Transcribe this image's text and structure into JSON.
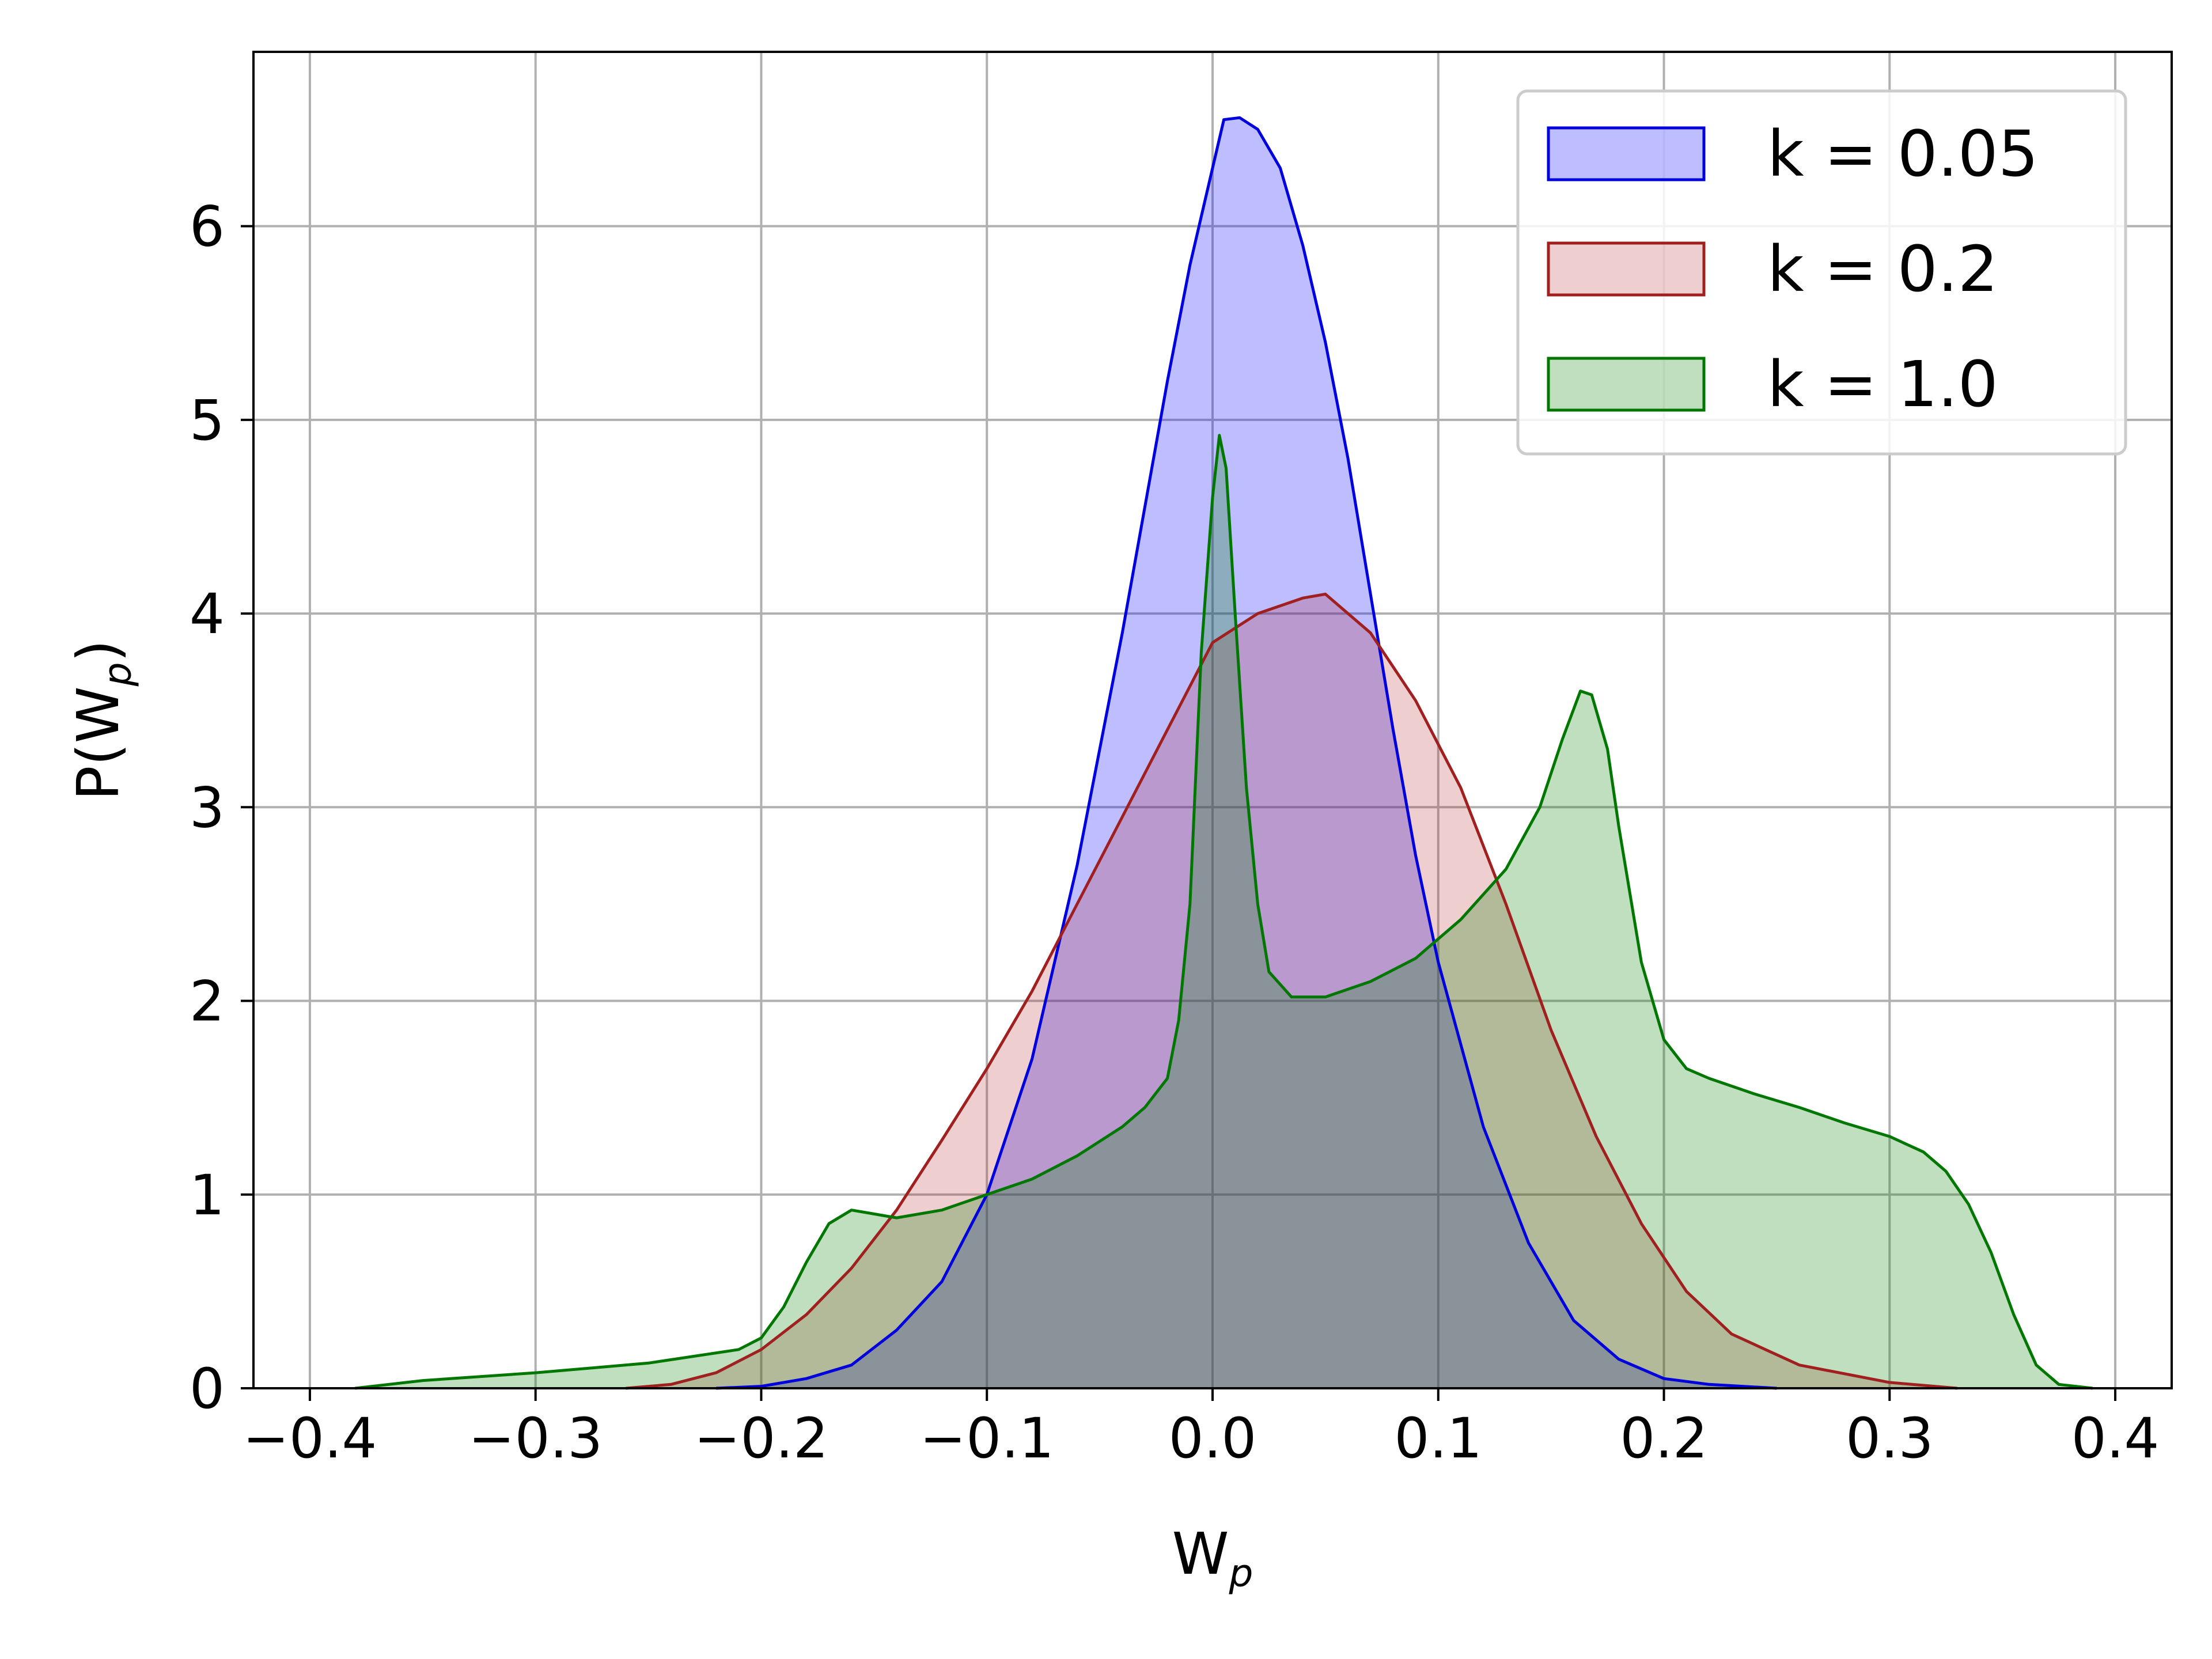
{
  "chart_data": {
    "type": "area",
    "xlabel": "W",
    "xlabel_sub": "p",
    "ylabel": "P(W",
    "ylabel_sub": "p",
    "ylabel_close": ")",
    "xlim": [
      -0.425,
      0.425
    ],
    "ylim": [
      0,
      6.9
    ],
    "grid": true,
    "legend_position": "top-right",
    "x_ticks": [
      -0.4,
      -0.3,
      -0.2,
      -0.1,
      0.0,
      0.1,
      0.2,
      0.3,
      0.4
    ],
    "x_tick_labels": [
      "−0.4",
      "−0.3",
      "−0.2",
      "−0.1",
      "0.0",
      "0.1",
      "0.2",
      "0.3",
      "0.4"
    ],
    "y_ticks": [
      0,
      1,
      2,
      3,
      4,
      5,
      6
    ],
    "y_tick_labels": [
      "0",
      "1",
      "2",
      "3",
      "4",
      "5",
      "6"
    ],
    "series": [
      {
        "name": "k = 0.05",
        "stroke": "#0000dd",
        "fill": "#0000ff",
        "fill_opacity": 0.26,
        "points": [
          [
            -0.22,
            0
          ],
          [
            -0.2,
            0.01
          ],
          [
            -0.18,
            0.05
          ],
          [
            -0.16,
            0.12
          ],
          [
            -0.14,
            0.3
          ],
          [
            -0.12,
            0.55
          ],
          [
            -0.1,
            1.0
          ],
          [
            -0.08,
            1.7
          ],
          [
            -0.06,
            2.7
          ],
          [
            -0.04,
            3.9
          ],
          [
            -0.02,
            5.2
          ],
          [
            -0.01,
            5.8
          ],
          [
            0.0,
            6.3
          ],
          [
            0.005,
            6.55
          ],
          [
            0.012,
            6.56
          ],
          [
            0.02,
            6.5
          ],
          [
            0.03,
            6.3
          ],
          [
            0.04,
            5.9
          ],
          [
            0.05,
            5.4
          ],
          [
            0.06,
            4.8
          ],
          [
            0.07,
            4.1
          ],
          [
            0.08,
            3.4
          ],
          [
            0.09,
            2.75
          ],
          [
            0.1,
            2.2
          ],
          [
            0.12,
            1.35
          ],
          [
            0.14,
            0.75
          ],
          [
            0.16,
            0.35
          ],
          [
            0.18,
            0.15
          ],
          [
            0.2,
            0.05
          ],
          [
            0.22,
            0.02
          ],
          [
            0.25,
            0
          ]
        ]
      },
      {
        "name": "k = 0.2",
        "stroke": "#a02020",
        "fill": "#b22222",
        "fill_opacity": 0.22,
        "points": [
          [
            -0.26,
            0
          ],
          [
            -0.24,
            0.02
          ],
          [
            -0.22,
            0.08
          ],
          [
            -0.2,
            0.2
          ],
          [
            -0.18,
            0.38
          ],
          [
            -0.16,
            0.62
          ],
          [
            -0.14,
            0.92
          ],
          [
            -0.12,
            1.28
          ],
          [
            -0.1,
            1.65
          ],
          [
            -0.08,
            2.05
          ],
          [
            -0.06,
            2.5
          ],
          [
            -0.04,
            2.95
          ],
          [
            -0.02,
            3.4
          ],
          [
            0.0,
            3.85
          ],
          [
            0.02,
            4.0
          ],
          [
            0.04,
            4.08
          ],
          [
            0.05,
            4.1
          ],
          [
            0.07,
            3.9
          ],
          [
            0.09,
            3.55
          ],
          [
            0.11,
            3.1
          ],
          [
            0.13,
            2.5
          ],
          [
            0.15,
            1.85
          ],
          [
            0.17,
            1.3
          ],
          [
            0.19,
            0.85
          ],
          [
            0.21,
            0.5
          ],
          [
            0.23,
            0.28
          ],
          [
            0.26,
            0.12
          ],
          [
            0.3,
            0.03
          ],
          [
            0.33,
            0
          ]
        ]
      },
      {
        "name": "k = 1.0",
        "stroke": "#007700",
        "fill": "#008000",
        "fill_opacity": 0.25,
        "points": [
          [
            -0.38,
            0
          ],
          [
            -0.35,
            0.04
          ],
          [
            -0.3,
            0.08
          ],
          [
            -0.25,
            0.13
          ],
          [
            -0.21,
            0.2
          ],
          [
            -0.2,
            0.26
          ],
          [
            -0.19,
            0.42
          ],
          [
            -0.18,
            0.65
          ],
          [
            -0.17,
            0.85
          ],
          [
            -0.16,
            0.92
          ],
          [
            -0.15,
            0.9
          ],
          [
            -0.14,
            0.88
          ],
          [
            -0.12,
            0.92
          ],
          [
            -0.1,
            1.0
          ],
          [
            -0.08,
            1.08
          ],
          [
            -0.06,
            1.2
          ],
          [
            -0.04,
            1.35
          ],
          [
            -0.03,
            1.45
          ],
          [
            -0.02,
            1.6
          ],
          [
            -0.015,
            1.9
          ],
          [
            -0.01,
            2.5
          ],
          [
            -0.005,
            3.8
          ],
          [
            0.0,
            4.6
          ],
          [
            0.003,
            4.92
          ],
          [
            0.006,
            4.75
          ],
          [
            0.01,
            4.0
          ],
          [
            0.015,
            3.1
          ],
          [
            0.02,
            2.5
          ],
          [
            0.025,
            2.15
          ],
          [
            0.035,
            2.02
          ],
          [
            0.05,
            2.02
          ],
          [
            0.07,
            2.1
          ],
          [
            0.09,
            2.22
          ],
          [
            0.11,
            2.42
          ],
          [
            0.13,
            2.68
          ],
          [
            0.145,
            3.0
          ],
          [
            0.155,
            3.35
          ],
          [
            0.163,
            3.6
          ],
          [
            0.168,
            3.58
          ],
          [
            0.175,
            3.3
          ],
          [
            0.18,
            2.9
          ],
          [
            0.19,
            2.2
          ],
          [
            0.2,
            1.8
          ],
          [
            0.21,
            1.65
          ],
          [
            0.22,
            1.6
          ],
          [
            0.24,
            1.52
          ],
          [
            0.26,
            1.45
          ],
          [
            0.28,
            1.37
          ],
          [
            0.3,
            1.3
          ],
          [
            0.315,
            1.22
          ],
          [
            0.325,
            1.12
          ],
          [
            0.335,
            0.95
          ],
          [
            0.345,
            0.7
          ],
          [
            0.355,
            0.38
          ],
          [
            0.365,
            0.12
          ],
          [
            0.375,
            0.02
          ],
          [
            0.39,
            0
          ]
        ]
      }
    ]
  }
}
